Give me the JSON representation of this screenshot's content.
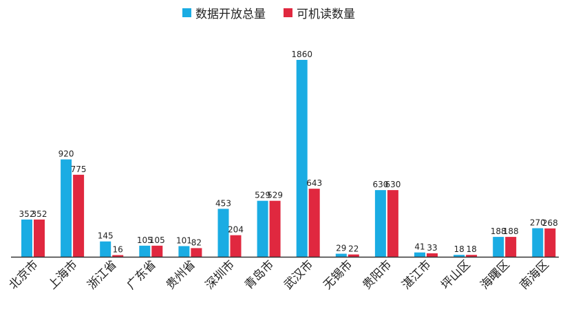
{
  "chart_data": {
    "type": "bar",
    "categories": [
      "北京市",
      "上海市",
      "浙江省",
      "广东省",
      "贵州省",
      "深圳市",
      "青岛市",
      "武汉市",
      "无锡市",
      "贵阳市",
      "湛江市",
      "坪山区",
      "海曙区",
      "南海区"
    ],
    "series": [
      {
        "name": "数据开放总量",
        "color": "#1aace3",
        "values": [
          352,
          920,
          145,
          105,
          101,
          453,
          529,
          1860,
          29,
          630,
          41,
          18,
          188,
          270
        ]
      },
      {
        "name": "可机读数量",
        "color": "#e0283f",
        "values": [
          352,
          775,
          16,
          105,
          82,
          204,
          529,
          643,
          22,
          630,
          33,
          18,
          188,
          268
        ]
      }
    ],
    "ylim": [
      0,
      1900
    ],
    "legend_position": "top-center",
    "grid": false
  }
}
